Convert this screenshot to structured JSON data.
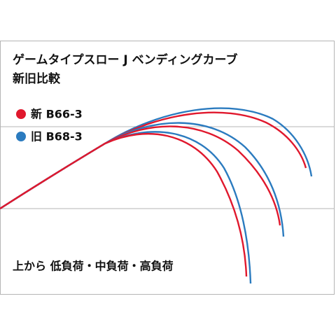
{
  "title": "ゲームタイプスロー J ベンディングカーブ",
  "subtitle": "新旧比較",
  "legend": [
    {
      "label": "新 B66-3",
      "color": "#e0182d"
    },
    {
      "label": "旧 B68-3",
      "color": "#2b7bbf"
    }
  ],
  "caption": "上から 低負荷・中負荷・高負荷"
}
